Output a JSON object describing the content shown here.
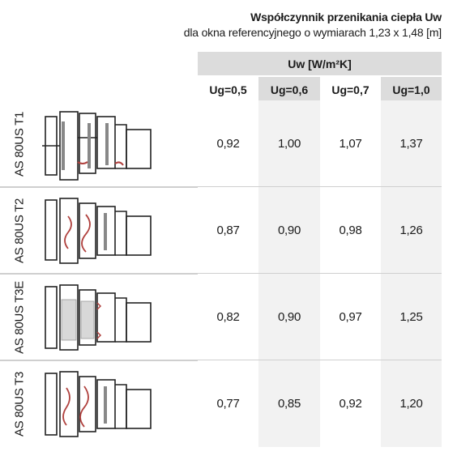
{
  "title": {
    "line1": "Współczynnik przenikania ciepła Uw",
    "line2": "dla okna referencyjnego o wymiarach 1,23 x 1,48 [m]"
  },
  "table": {
    "group_header": "Uw [W/m²K]",
    "columns": [
      "Ug=0,5",
      "Ug=0,6",
      "Ug=0,7",
      "Ug=1,0"
    ],
    "rows": [
      {
        "label": "AS 80US T1",
        "values": [
          "0,92",
          "1,00",
          "1,07",
          "1,37"
        ],
        "drawing": "profile-section-t1-icon"
      },
      {
        "label": "AS 80US T2",
        "values": [
          "0,87",
          "0,90",
          "0,98",
          "1,26"
        ],
        "drawing": "profile-section-t2-icon"
      },
      {
        "label": "AS 80US T3E",
        "values": [
          "0,82",
          "0,90",
          "0,97",
          "1,25"
        ],
        "drawing": "profile-section-t3e-icon"
      },
      {
        "label": "AS 80US T3",
        "values": [
          "0,77",
          "0,85",
          "0,92",
          "1,20"
        ],
        "drawing": "profile-section-t3-icon"
      }
    ]
  },
  "colors": {
    "header_gray": "#dcdcdc",
    "cell_gray": "#f2f2f2",
    "divider": "#cfcfcf",
    "profile_line": "#222222",
    "gasket_red": "#b0413e"
  }
}
